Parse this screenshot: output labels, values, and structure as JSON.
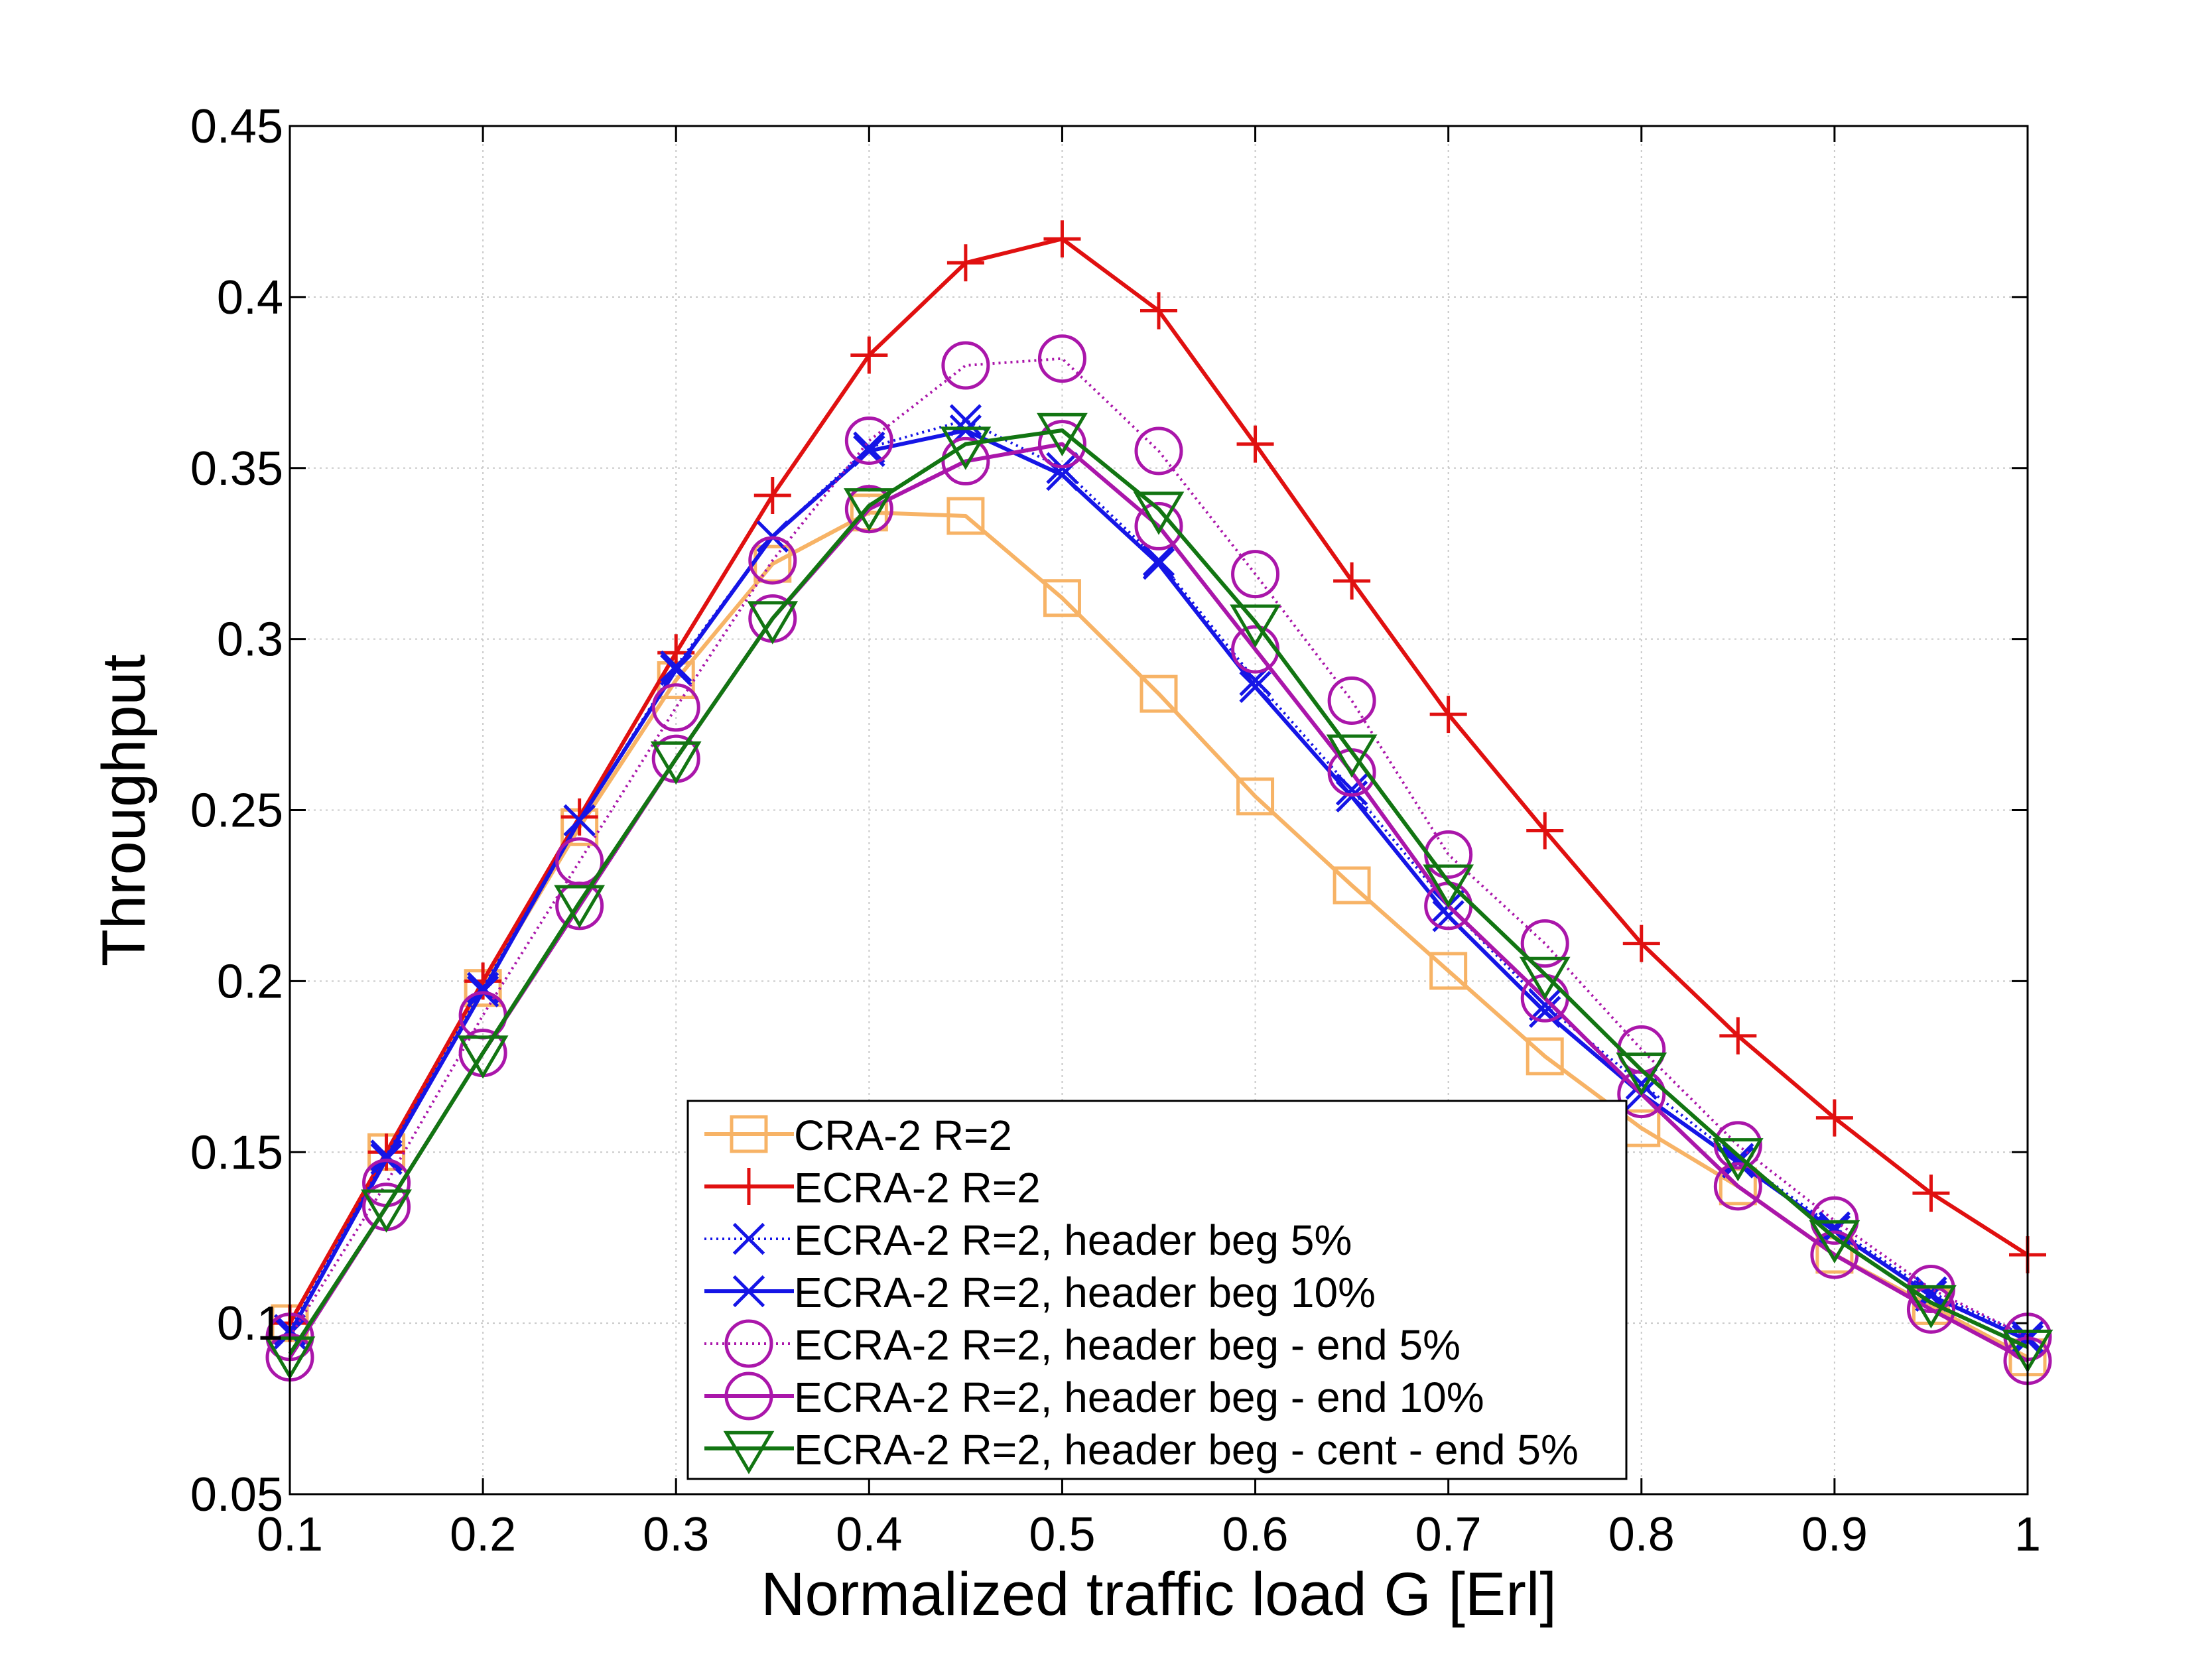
{
  "chart_data": {
    "type": "line",
    "title": "",
    "xlabel": "Normalized traffic load G [Erl]",
    "ylabel": "Throughput",
    "xlim": [
      0.1,
      1.0
    ],
    "ylim": [
      0.05,
      0.45
    ],
    "grid": true,
    "legend_position": "bottom-center",
    "xticks": [
      0.1,
      0.2,
      0.3,
      0.4,
      0.5,
      0.6,
      0.7,
      0.8,
      0.9,
      1.0
    ],
    "xtick_labels": [
      "0.1",
      "0.2",
      "0.3",
      "0.4",
      "0.5",
      "0.6",
      "0.7",
      "0.8",
      "0.9",
      "1"
    ],
    "yticks": [
      0.05,
      0.1,
      0.15,
      0.2,
      0.25,
      0.3,
      0.35,
      0.4,
      0.45
    ],
    "ytick_labels": [
      "0.05",
      "0.1",
      "0.15",
      "0.2",
      "0.25",
      "0.3",
      "0.35",
      "0.4",
      "0.45"
    ],
    "x": [
      0.1,
      0.15,
      0.2,
      0.25,
      0.3,
      0.35,
      0.4,
      0.45,
      0.5,
      0.55,
      0.6,
      0.65,
      0.7,
      0.75,
      0.8,
      0.85,
      0.9,
      0.95,
      1.0
    ],
    "series": [
      {
        "name": "CRA-2 R=2",
        "color": "#f7b366",
        "marker": "square",
        "line": "solid",
        "values": [
          0.1,
          0.15,
          0.198,
          0.245,
          0.288,
          0.322,
          0.337,
          0.336,
          0.312,
          0.284,
          0.254,
          0.228,
          0.203,
          0.178,
          0.157,
          0.14,
          0.12,
          0.105,
          0.09
        ]
      },
      {
        "name": "ECRA-2 R=2",
        "color": "#e01010",
        "marker": "plus",
        "line": "solid",
        "values": [
          0.1,
          0.15,
          0.2,
          0.248,
          0.296,
          0.342,
          0.383,
          0.41,
          0.417,
          0.396,
          0.357,
          0.317,
          0.278,
          0.244,
          0.211,
          0.184,
          0.16,
          0.138,
          0.12
        ]
      },
      {
        "name": "ECRA-2 R=2, header beg 5%",
        "color": "#1515e6",
        "marker": "x",
        "line": "dotted",
        "values": [
          0.098,
          0.149,
          0.198,
          0.247,
          0.292,
          0.33,
          0.356,
          0.364,
          0.35,
          0.323,
          0.288,
          0.256,
          0.222,
          0.193,
          0.17,
          0.148,
          0.128,
          0.109,
          0.096
        ]
      },
      {
        "name": "ECRA-2 R=2, header beg 10%",
        "color": "#1515e6",
        "marker": "x",
        "line": "solid",
        "values": [
          0.097,
          0.148,
          0.197,
          0.247,
          0.291,
          0.33,
          0.355,
          0.361,
          0.348,
          0.322,
          0.286,
          0.254,
          0.219,
          0.191,
          0.167,
          0.147,
          0.127,
          0.108,
          0.095
        ]
      },
      {
        "name": "ECRA-2 R=2, header beg - end 5%",
        "color": "#aa16aa",
        "marker": "circle",
        "line": "dotted",
        "values": [
          0.096,
          0.141,
          0.19,
          0.235,
          0.28,
          0.323,
          0.358,
          0.38,
          0.382,
          0.355,
          0.319,
          0.282,
          0.237,
          0.211,
          0.18,
          0.152,
          0.13,
          0.11,
          0.096
        ]
      },
      {
        "name": "ECRA-2 R=2, header beg - end 10%",
        "color": "#aa16aa",
        "marker": "circle",
        "line": "solid",
        "values": [
          0.09,
          0.134,
          0.179,
          0.222,
          0.265,
          0.306,
          0.338,
          0.352,
          0.357,
          0.333,
          0.297,
          0.261,
          0.222,
          0.195,
          0.167,
          0.14,
          0.12,
          0.104,
          0.089
        ]
      },
      {
        "name": "ECRA-2 R=2, header beg - cent - end 5%",
        "color": "#127512",
        "marker": "triangle-down",
        "line": "solid",
        "values": [
          0.091,
          0.134,
          0.179,
          0.223,
          0.265,
          0.306,
          0.339,
          0.357,
          0.361,
          0.338,
          0.305,
          0.267,
          0.229,
          0.202,
          0.174,
          0.149,
          0.125,
          0.106,
          0.093
        ]
      }
    ]
  }
}
